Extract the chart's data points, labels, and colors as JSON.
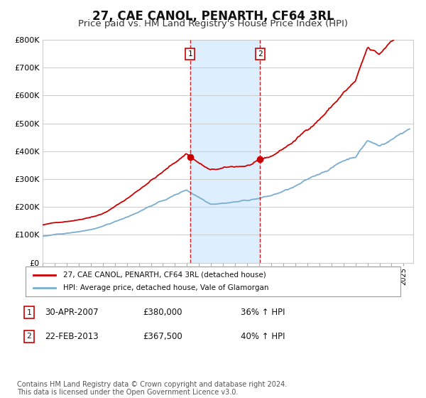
{
  "title": "27, CAE CANOL, PENARTH, CF64 3RL",
  "subtitle": "Price paid vs. HM Land Registry's House Price Index (HPI)",
  "title_fontsize": 12,
  "subtitle_fontsize": 9.5,
  "ylim": [
    0,
    800000
  ],
  "yticks": [
    0,
    100000,
    200000,
    300000,
    400000,
    500000,
    600000,
    700000,
    800000
  ],
  "ytick_labels": [
    "£0",
    "£100K",
    "£200K",
    "£300K",
    "£400K",
    "£500K",
    "£600K",
    "£700K",
    "£800K"
  ],
  "background_color": "#ffffff",
  "plot_bg_color": "#ffffff",
  "grid_color": "#cccccc",
  "red_color": "#cc0000",
  "blue_color": "#7aadcf",
  "shade_color": "#ddeeff",
  "vline_color": "#cc0000",
  "point1_date": "30-APR-2007",
  "point1_price": "£380,000",
  "point1_hpi": "36% ↑ HPI",
  "point2_date": "22-FEB-2013",
  "point2_price": "£367,500",
  "point2_hpi": "40% ↑ HPI",
  "legend_line1": "27, CAE CANOL, PENARTH, CF64 3RL (detached house)",
  "legend_line2": "HPI: Average price, detached house, Vale of Glamorgan",
  "footnote": "Contains HM Land Registry data © Crown copyright and database right 2024.\nThis data is licensed under the Open Government Licence v3.0.",
  "footnote_fontsize": 7,
  "xlim_start": 1995.0,
  "xlim_end": 2025.8
}
